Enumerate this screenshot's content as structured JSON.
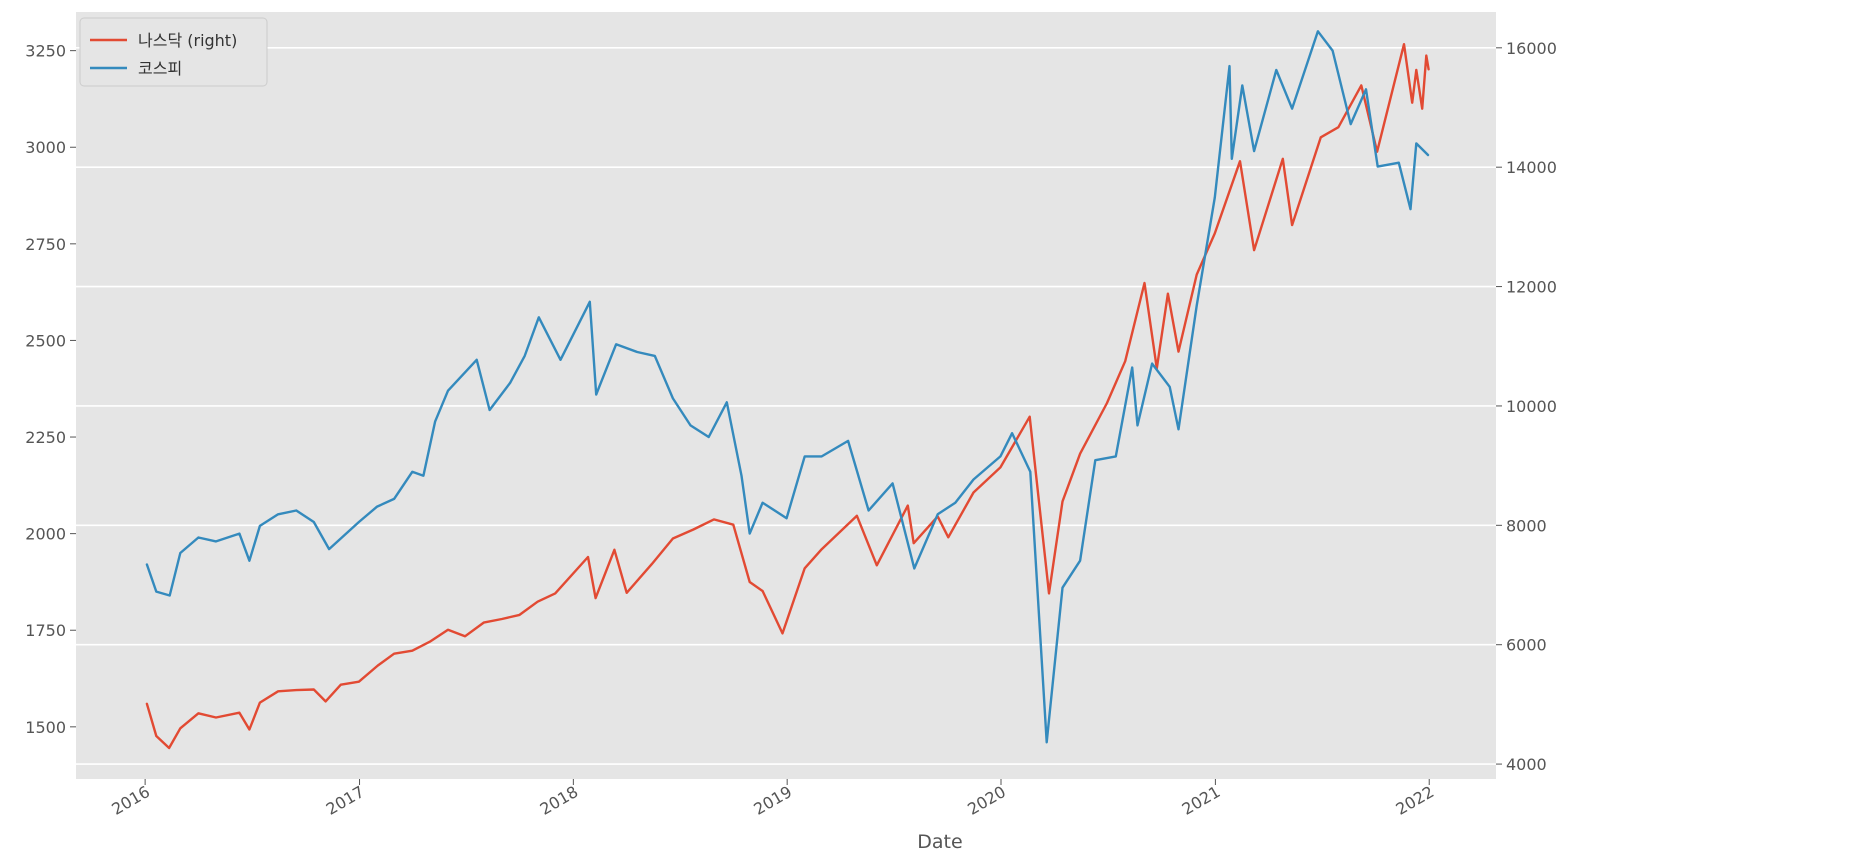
{
  "chart_data": {
    "type": "line",
    "xlabel": "Date",
    "x_ticks": [
      "2016",
      "2017",
      "2018",
      "2019",
      "2020",
      "2021",
      "2022"
    ],
    "y_left": {
      "ticks": [
        1500,
        1750,
        2000,
        2250,
        2500,
        2750,
        3000,
        3250
      ],
      "range": [
        1365,
        3350
      ]
    },
    "y_right": {
      "ticks": [
        4000,
        6000,
        8000,
        10000,
        12000,
        14000,
        16000
      ],
      "range": [
        3750,
        16600
      ]
    },
    "x_range": [
      "2015-09-05",
      "2022-04-25"
    ],
    "grid": true,
    "legend": "top-left",
    "colors": {
      "background": "#e5e5e5",
      "grid": "#ffffff",
      "nasdaq": "#e24a33",
      "kospi": "#348abd",
      "tick": "#555555"
    },
    "series": [
      {
        "name": "나스닥 (right)",
        "axis": "right",
        "color": "#e24a33",
        "points": [
          [
            "2016-01-04",
            5010
          ],
          [
            "2016-01-20",
            4470
          ],
          [
            "2016-02-11",
            4270
          ],
          [
            "2016-03-01",
            4600
          ],
          [
            "2016-04-01",
            4850
          ],
          [
            "2016-05-01",
            4780
          ],
          [
            "2016-06-10",
            4860
          ],
          [
            "2016-06-27",
            4580
          ],
          [
            "2016-07-15",
            5030
          ],
          [
            "2016-08-15",
            5220
          ],
          [
            "2016-09-15",
            5240
          ],
          [
            "2016-10-15",
            5250
          ],
          [
            "2016-11-04",
            5050
          ],
          [
            "2016-11-30",
            5330
          ],
          [
            "2016-12-31",
            5380
          ],
          [
            "2017-02-01",
            5650
          ],
          [
            "2017-03-01",
            5850
          ],
          [
            "2017-04-01",
            5900
          ],
          [
            "2017-05-01",
            6050
          ],
          [
            "2017-06-01",
            6250
          ],
          [
            "2017-06-30",
            6140
          ],
          [
            "2017-08-01",
            6370
          ],
          [
            "2017-09-01",
            6430
          ],
          [
            "2017-10-01",
            6500
          ],
          [
            "2017-11-01",
            6720
          ],
          [
            "2017-12-01",
            6860
          ],
          [
            "2018-01-26",
            7470
          ],
          [
            "2018-02-08",
            6780
          ],
          [
            "2018-03-12",
            7590
          ],
          [
            "2018-04-02",
            6870
          ],
          [
            "2018-05-15",
            7350
          ],
          [
            "2018-06-20",
            7780
          ],
          [
            "2018-07-25",
            7930
          ],
          [
            "2018-08-29",
            8100
          ],
          [
            "2018-10-01",
            8010
          ],
          [
            "2018-10-29",
            7050
          ],
          [
            "2018-11-20",
            6900
          ],
          [
            "2018-12-24",
            6190
          ],
          [
            "2019-01-31",
            7280
          ],
          [
            "2019-03-01",
            7600
          ],
          [
            "2019-04-30",
            8160
          ],
          [
            "2019-06-03",
            7330
          ],
          [
            "2019-07-26",
            8330
          ],
          [
            "2019-08-05",
            7700
          ],
          [
            "2019-09-15",
            8150
          ],
          [
            "2019-10-03",
            7800
          ],
          [
            "2019-11-15",
            8550
          ],
          [
            "2019-12-31",
            8970
          ],
          [
            "2020-02-19",
            9820
          ],
          [
            "2020-03-23",
            6860
          ],
          [
            "2020-04-15",
            8400
          ],
          [
            "2020-05-15",
            9200
          ],
          [
            "2020-06-30",
            10050
          ],
          [
            "2020-07-31",
            10750
          ],
          [
            "2020-09-02",
            12060
          ],
          [
            "2020-09-23",
            10630
          ],
          [
            "2020-10-12",
            11880
          ],
          [
            "2020-10-30",
            10910
          ],
          [
            "2020-11-30",
            12200
          ],
          [
            "2020-12-31",
            12890
          ],
          [
            "2021-02-12",
            14100
          ],
          [
            "2021-03-08",
            12610
          ],
          [
            "2021-04-26",
            14140
          ],
          [
            "2021-05-12",
            13030
          ],
          [
            "2021-06-30",
            14500
          ],
          [
            "2021-07-30",
            14670
          ],
          [
            "2021-09-07",
            15370
          ],
          [
            "2021-10-04",
            14260
          ],
          [
            "2021-11-19",
            16060
          ],
          [
            "2021-12-03",
            15080
          ],
          [
            "2021-12-10",
            15630
          ],
          [
            "2021-12-20",
            14980
          ],
          [
            "2021-12-27",
            15870
          ],
          [
            "2021-12-31",
            15640
          ]
        ]
      },
      {
        "name": "코스피",
        "axis": "left",
        "color": "#348abd",
        "points": [
          [
            "2016-01-04",
            1920
          ],
          [
            "2016-01-20",
            1850
          ],
          [
            "2016-02-12",
            1840
          ],
          [
            "2016-03-01",
            1950
          ],
          [
            "2016-04-01",
            1990
          ],
          [
            "2016-05-01",
            1980
          ],
          [
            "2016-06-10",
            2000
          ],
          [
            "2016-06-27",
            1930
          ],
          [
            "2016-07-15",
            2020
          ],
          [
            "2016-08-15",
            2050
          ],
          [
            "2016-09-15",
            2060
          ],
          [
            "2016-10-15",
            2030
          ],
          [
            "2016-11-10",
            1960
          ],
          [
            "2016-12-31",
            2030
          ],
          [
            "2017-01-31",
            2070
          ],
          [
            "2017-03-01",
            2090
          ],
          [
            "2017-04-01",
            2160
          ],
          [
            "2017-04-20",
            2150
          ],
          [
            "2017-05-10",
            2290
          ],
          [
            "2017-06-01",
            2370
          ],
          [
            "2017-07-20",
            2450
          ],
          [
            "2017-08-11",
            2320
          ],
          [
            "2017-09-15",
            2390
          ],
          [
            "2017-10-10",
            2460
          ],
          [
            "2017-11-03",
            2560
          ],
          [
            "2017-12-10",
            2450
          ],
          [
            "2018-01-29",
            2600
          ],
          [
            "2018-02-09",
            2360
          ],
          [
            "2018-03-15",
            2490
          ],
          [
            "2018-04-20",
            2470
          ],
          [
            "2018-05-20",
            2460
          ],
          [
            "2018-06-20",
            2350
          ],
          [
            "2018-07-20",
            2280
          ],
          [
            "2018-08-20",
            2250
          ],
          [
            "2018-09-20",
            2340
          ],
          [
            "2018-10-15",
            2150
          ],
          [
            "2018-10-29",
            2000
          ],
          [
            "2018-11-20",
            2080
          ],
          [
            "2018-12-31",
            2040
          ],
          [
            "2019-01-31",
            2200
          ],
          [
            "2019-03-01",
            2200
          ],
          [
            "2019-04-15",
            2240
          ],
          [
            "2019-05-20",
            2060
          ],
          [
            "2019-06-30",
            2130
          ],
          [
            "2019-08-06",
            1910
          ],
          [
            "2019-09-15",
            2050
          ],
          [
            "2019-10-15",
            2080
          ],
          [
            "2019-11-15",
            2140
          ],
          [
            "2019-12-31",
            2200
          ],
          [
            "2020-01-20",
            2260
          ],
          [
            "2020-02-20",
            2160
          ],
          [
            "2020-03-19",
            1460
          ],
          [
            "2020-04-15",
            1860
          ],
          [
            "2020-05-15",
            1930
          ],
          [
            "2020-06-10",
            2190
          ],
          [
            "2020-07-15",
            2200
          ],
          [
            "2020-08-12",
            2430
          ],
          [
            "2020-08-21",
            2280
          ],
          [
            "2020-09-15",
            2440
          ],
          [
            "2020-10-15",
            2380
          ],
          [
            "2020-10-30",
            2270
          ],
          [
            "2020-11-30",
            2590
          ],
          [
            "2020-12-31",
            2870
          ],
          [
            "2021-01-25",
            3210
          ],
          [
            "2021-01-29",
            2970
          ],
          [
            "2021-02-16",
            3160
          ],
          [
            "2021-03-08",
            2990
          ],
          [
            "2021-04-15",
            3200
          ],
          [
            "2021-05-12",
            3100
          ],
          [
            "2021-06-25",
            3300
          ],
          [
            "2021-07-20",
            3250
          ],
          [
            "2021-08-20",
            3060
          ],
          [
            "2021-09-15",
            3150
          ],
          [
            "2021-10-05",
            2950
          ],
          [
            "2021-11-10",
            2960
          ],
          [
            "2021-11-30",
            2840
          ],
          [
            "2021-12-10",
            3010
          ],
          [
            "2021-12-30",
            2980
          ]
        ]
      }
    ]
  }
}
